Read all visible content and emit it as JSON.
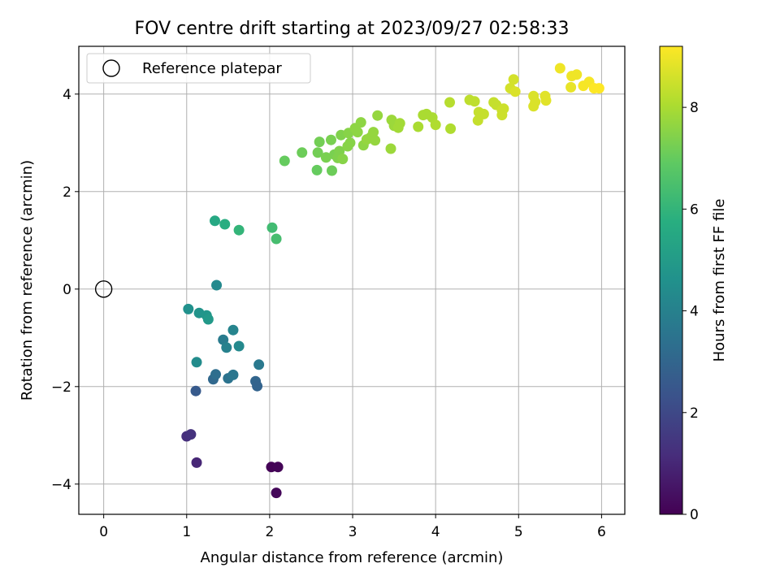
{
  "chart_data": {
    "type": "scatter",
    "title": "FOV centre drift starting at 2023/09/27 02:58:33",
    "xlabel": "Angular distance from reference (arcmin)",
    "ylabel": "Rotation from reference (arcmin)",
    "xlim": [
      -0.3,
      6.28
    ],
    "ylim": [
      -4.62,
      4.98
    ],
    "xticks": [
      "0",
      "1",
      "2",
      "3",
      "4",
      "5",
      "6"
    ],
    "yticks": [
      "−4",
      "−2",
      "0",
      "2",
      "4"
    ],
    "grid": true,
    "legend": {
      "position": "top-left",
      "entries": [
        "Reference platepar"
      ]
    },
    "reference_point": {
      "x": 0,
      "y": 0
    },
    "colorbar": {
      "label": "Hours from first FF file",
      "min": 0,
      "max": 9.2,
      "ticks": [
        "0",
        "2",
        "4",
        "6",
        "8"
      ],
      "colormap": "viridis"
    },
    "series": [
      {
        "points": [
          {
            "x": 2.02,
            "y": -3.65,
            "h": 0.05
          },
          {
            "x": 2.1,
            "y": -3.65,
            "h": 0.1
          },
          {
            "x": 2.08,
            "y": -4.18,
            "h": 0.15
          },
          {
            "x": 1.12,
            "y": -3.56,
            "h": 1.0
          },
          {
            "x": 1.0,
            "y": -3.02,
            "h": 1.2
          },
          {
            "x": 1.05,
            "y": -2.98,
            "h": 1.3
          },
          {
            "x": 1.11,
            "y": -2.09,
            "h": 2.6
          },
          {
            "x": 1.32,
            "y": -1.85,
            "h": 3.1
          },
          {
            "x": 1.35,
            "y": -1.75,
            "h": 3.3
          },
          {
            "x": 1.5,
            "y": -1.83,
            "h": 3.5
          },
          {
            "x": 1.56,
            "y": -1.76,
            "h": 3.6
          },
          {
            "x": 1.83,
            "y": -1.89,
            "h": 3.0
          },
          {
            "x": 1.85,
            "y": -1.99,
            "h": 2.9
          },
          {
            "x": 1.87,
            "y": -1.55,
            "h": 3.7
          },
          {
            "x": 1.44,
            "y": -1.04,
            "h": 3.8
          },
          {
            "x": 1.48,
            "y": -1.2,
            "h": 4.0
          },
          {
            "x": 1.56,
            "y": -0.84,
            "h": 4.1
          },
          {
            "x": 1.63,
            "y": -1.17,
            "h": 4.3
          },
          {
            "x": 1.12,
            "y": -1.5,
            "h": 4.4
          },
          {
            "x": 1.02,
            "y": -0.41,
            "h": 4.6
          },
          {
            "x": 1.15,
            "y": -0.49,
            "h": 4.7
          },
          {
            "x": 1.24,
            "y": -0.54,
            "h": 4.8
          },
          {
            "x": 1.26,
            "y": -0.62,
            "h": 4.9
          },
          {
            "x": 1.36,
            "y": 0.08,
            "h": 4.3
          },
          {
            "x": 1.34,
            "y": 1.4,
            "h": 5.5
          },
          {
            "x": 1.46,
            "y": 1.33,
            "h": 5.7
          },
          {
            "x": 1.63,
            "y": 1.21,
            "h": 6.0
          },
          {
            "x": 2.03,
            "y": 1.26,
            "h": 6.3
          },
          {
            "x": 2.08,
            "y": 1.03,
            "h": 6.4
          },
          {
            "x": 2.18,
            "y": 2.63,
            "h": 7.0
          },
          {
            "x": 2.39,
            "y": 2.8,
            "h": 7.1
          },
          {
            "x": 2.57,
            "y": 2.44,
            "h": 7.0
          },
          {
            "x": 2.58,
            "y": 2.8,
            "h": 7.2
          },
          {
            "x": 2.6,
            "y": 3.02,
            "h": 7.2
          },
          {
            "x": 2.68,
            "y": 2.7,
            "h": 7.3
          },
          {
            "x": 2.74,
            "y": 3.06,
            "h": 7.3
          },
          {
            "x": 2.75,
            "y": 2.43,
            "h": 7.1
          },
          {
            "x": 2.78,
            "y": 2.76,
            "h": 7.3
          },
          {
            "x": 2.82,
            "y": 2.69,
            "h": 7.4
          },
          {
            "x": 2.84,
            "y": 2.83,
            "h": 7.4
          },
          {
            "x": 2.86,
            "y": 3.16,
            "h": 7.4
          },
          {
            "x": 2.88,
            "y": 2.67,
            "h": 7.5
          },
          {
            "x": 2.94,
            "y": 2.93,
            "h": 7.5
          },
          {
            "x": 2.95,
            "y": 3.2,
            "h": 7.5
          },
          {
            "x": 2.97,
            "y": 3.0,
            "h": 7.5
          },
          {
            "x": 3.03,
            "y": 3.3,
            "h": 7.6
          },
          {
            "x": 3.06,
            "y": 3.22,
            "h": 7.6
          },
          {
            "x": 3.1,
            "y": 3.42,
            "h": 7.6
          },
          {
            "x": 3.13,
            "y": 2.95,
            "h": 7.6
          },
          {
            "x": 3.17,
            "y": 3.07,
            "h": 7.7
          },
          {
            "x": 3.22,
            "y": 3.12,
            "h": 7.7
          },
          {
            "x": 3.25,
            "y": 3.22,
            "h": 7.7
          },
          {
            "x": 3.27,
            "y": 3.05,
            "h": 7.7
          },
          {
            "x": 3.3,
            "y": 3.56,
            "h": 7.7
          },
          {
            "x": 3.46,
            "y": 2.88,
            "h": 7.8
          },
          {
            "x": 3.47,
            "y": 3.47,
            "h": 7.8
          },
          {
            "x": 3.5,
            "y": 3.35,
            "h": 7.8
          },
          {
            "x": 3.55,
            "y": 3.31,
            "h": 7.9
          },
          {
            "x": 3.57,
            "y": 3.4,
            "h": 7.9
          },
          {
            "x": 3.79,
            "y": 3.33,
            "h": 8.0
          },
          {
            "x": 3.85,
            "y": 3.57,
            "h": 8.0
          },
          {
            "x": 3.89,
            "y": 3.59,
            "h": 8.0
          },
          {
            "x": 3.96,
            "y": 3.52,
            "h": 8.0
          },
          {
            "x": 4.0,
            "y": 3.37,
            "h": 8.1
          },
          {
            "x": 4.17,
            "y": 3.83,
            "h": 8.2
          },
          {
            "x": 4.18,
            "y": 3.29,
            "h": 8.1
          },
          {
            "x": 4.41,
            "y": 3.88,
            "h": 8.3
          },
          {
            "x": 4.47,
            "y": 3.85,
            "h": 8.3
          },
          {
            "x": 4.51,
            "y": 3.46,
            "h": 8.4
          },
          {
            "x": 4.52,
            "y": 3.63,
            "h": 8.4
          },
          {
            "x": 4.58,
            "y": 3.59,
            "h": 8.4
          },
          {
            "x": 4.7,
            "y": 3.83,
            "h": 8.4
          },
          {
            "x": 4.73,
            "y": 3.78,
            "h": 8.4
          },
          {
            "x": 4.8,
            "y": 3.67,
            "h": 8.5
          },
          {
            "x": 4.8,
            "y": 3.57,
            "h": 8.5
          },
          {
            "x": 4.82,
            "y": 3.7,
            "h": 8.5
          },
          {
            "x": 4.9,
            "y": 4.12,
            "h": 8.6
          },
          {
            "x": 4.94,
            "y": 4.3,
            "h": 8.6
          },
          {
            "x": 4.96,
            "y": 4.05,
            "h": 8.7
          },
          {
            "x": 5.18,
            "y": 3.96,
            "h": 8.7
          },
          {
            "x": 5.18,
            "y": 3.75,
            "h": 8.7
          },
          {
            "x": 5.2,
            "y": 3.84,
            "h": 8.7
          },
          {
            "x": 5.32,
            "y": 3.96,
            "h": 8.8
          },
          {
            "x": 5.33,
            "y": 3.87,
            "h": 8.8
          },
          {
            "x": 5.5,
            "y": 4.53,
            "h": 9.0
          },
          {
            "x": 5.63,
            "y": 4.14,
            "h": 8.9
          },
          {
            "x": 5.64,
            "y": 4.37,
            "h": 9.0
          },
          {
            "x": 5.7,
            "y": 4.4,
            "h": 9.0
          },
          {
            "x": 5.78,
            "y": 4.17,
            "h": 9.1
          },
          {
            "x": 5.85,
            "y": 4.25,
            "h": 9.1
          },
          {
            "x": 5.91,
            "y": 4.12,
            "h": 9.2
          },
          {
            "x": 5.97,
            "y": 4.12,
            "h": 9.2
          }
        ]
      }
    ]
  }
}
